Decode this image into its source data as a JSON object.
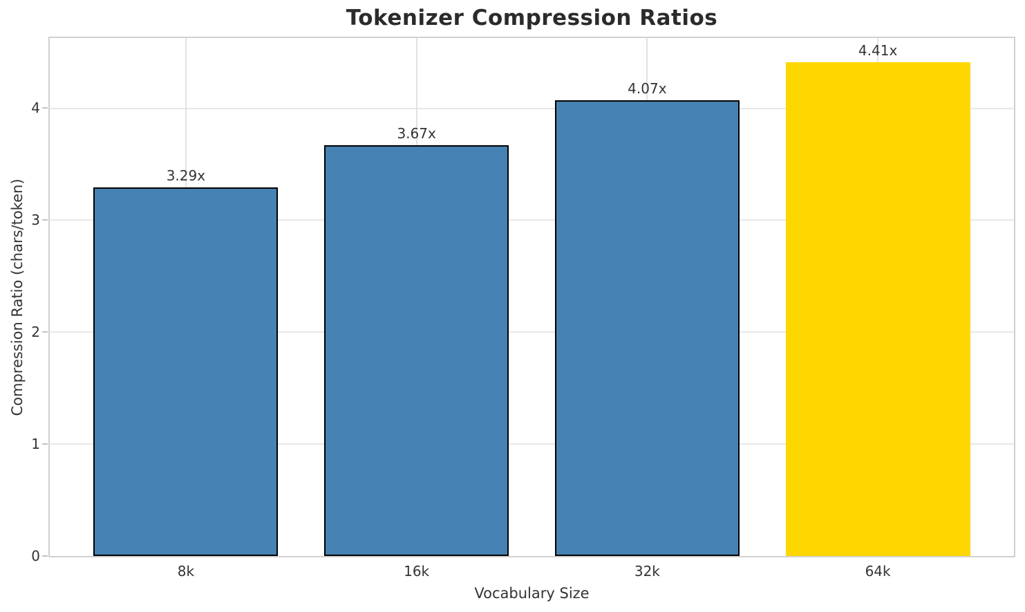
{
  "chart_data": {
    "type": "bar",
    "title": "Tokenizer Compression Ratios",
    "xlabel": "Vocabulary Size",
    "ylabel": "Compression Ratio (chars/token)",
    "categories": [
      "8k",
      "16k",
      "32k",
      "64k"
    ],
    "values": [
      3.29,
      3.67,
      4.07,
      4.41
    ],
    "value_labels": [
      "3.29x",
      "3.67x",
      "4.07x",
      "4.41x"
    ],
    "bar_colors": [
      "#4682B4",
      "#4682B4",
      "#4682B4",
      "#FFD700"
    ],
    "bar_edge_colors": [
      "#000000",
      "#000000",
      "#000000",
      "none"
    ],
    "yticks": [
      0,
      1,
      2,
      3,
      4
    ],
    "ylim": [
      0,
      4.627
    ],
    "xlim": [
      -0.59,
      3.59
    ],
    "bar_width": 0.8,
    "grid": true,
    "legend": "none",
    "colors": {
      "bar": "#4682B4",
      "highlight": "#FFD700",
      "bar_edge": "#000000",
      "grid_h": "#e7e7e7",
      "grid_v": "#e2e2e2",
      "spine": "#d0d0d0",
      "text": "#333333",
      "title": "#2b2b2b"
    }
  }
}
